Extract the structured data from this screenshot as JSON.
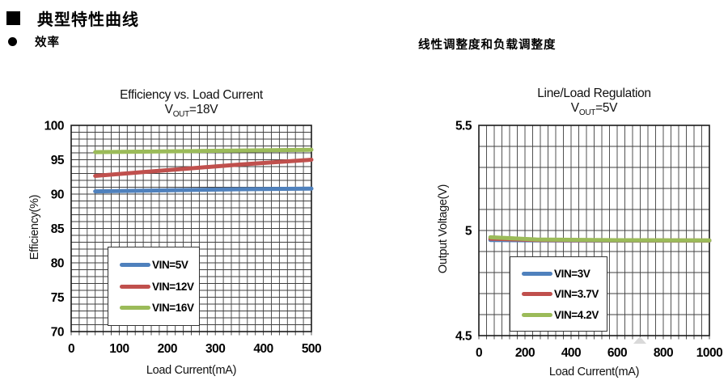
{
  "page": {
    "section_title": "典型特性曲线",
    "left_subheading": "效率",
    "right_subheading": "线性调整度和负载调整度",
    "icons": {
      "section_marker": "black-square-icon",
      "subheading_marker": "black-dot-icon",
      "watermark": "gray-triangle-icon"
    },
    "colors": {
      "series_blue": "#4F81BD",
      "series_red": "#C0504D",
      "series_green": "#9BBB59",
      "grid": "#3f3f3f",
      "watermark_gray": "#d9d9d9"
    }
  },
  "chart_data": [
    {
      "type": "line",
      "title": "Efficiency vs. Load Current",
      "subtitle_prefix": "V",
      "subtitle_sub": "OUT",
      "subtitle_suffix": "=18V",
      "xlabel": "Load Current(mA)",
      "ylabel": "Efficiency(%)",
      "xlim": [
        0,
        500
      ],
      "ylim": [
        70,
        100
      ],
      "x_ticks": [
        0,
        100,
        200,
        300,
        400,
        500
      ],
      "y_ticks": [
        100,
        95,
        90,
        85,
        80,
        75,
        70
      ],
      "x_minor_divisions": 30,
      "y_minor_divisions": 30,
      "grid": "on",
      "legend_position": "inside-bottom-center",
      "series": [
        {
          "name": "VIN=5V",
          "color": "#4F81BD",
          "points": [
            [
              50,
              90.4
            ],
            [
              150,
              90.5
            ],
            [
              250,
              90.6
            ],
            [
              350,
              90.7
            ],
            [
              500,
              90.8
            ]
          ]
        },
        {
          "name": "VIN=12V",
          "color": "#C0504D",
          "points": [
            [
              50,
              92.65
            ],
            [
              150,
              93.2
            ],
            [
              250,
              93.75
            ],
            [
              350,
              94.3
            ],
            [
              500,
              95.0
            ]
          ]
        },
        {
          "name": "VIN=16V",
          "color": "#9BBB59",
          "points": [
            [
              50,
              96.1
            ],
            [
              250,
              96.25
            ],
            [
              500,
              96.45
            ]
          ]
        }
      ]
    },
    {
      "type": "line",
      "title": "Line/Load Regulation",
      "subtitle_prefix": "V",
      "subtitle_sub": "OUT",
      "subtitle_suffix": "=5V",
      "xlabel": "Load Current(mA)",
      "ylabel": "Output Voltage(V)",
      "xlim": [
        0,
        1000
      ],
      "ylim": [
        4.5,
        5.5
      ],
      "x_ticks": [
        0,
        200,
        400,
        600,
        800,
        1000
      ],
      "y_ticks": [
        5.5,
        5,
        4.5
      ],
      "x_minor_divisions": 30,
      "y_minor_divisions": 10,
      "grid": "on",
      "legend_position": "inside-bottom-center",
      "series": [
        {
          "name": "VIN=3V",
          "color": "#4F81BD",
          "points": [
            [
              50,
              4.955
            ],
            [
              250,
              4.953
            ],
            [
              600,
              4.952
            ],
            [
              1000,
              4.952
            ]
          ]
        },
        {
          "name": "VIN=3.7V",
          "color": "#C0504D",
          "points": [
            [
              50,
              4.961
            ],
            [
              250,
              4.955
            ],
            [
              600,
              4.953
            ],
            [
              1000,
              4.9525
            ]
          ]
        },
        {
          "name": "VIN=4.2V",
          "color": "#9BBB59",
          "points": [
            [
              50,
              4.968
            ],
            [
              250,
              4.957
            ],
            [
              600,
              4.954
            ],
            [
              1000,
              4.953
            ]
          ]
        }
      ]
    }
  ]
}
